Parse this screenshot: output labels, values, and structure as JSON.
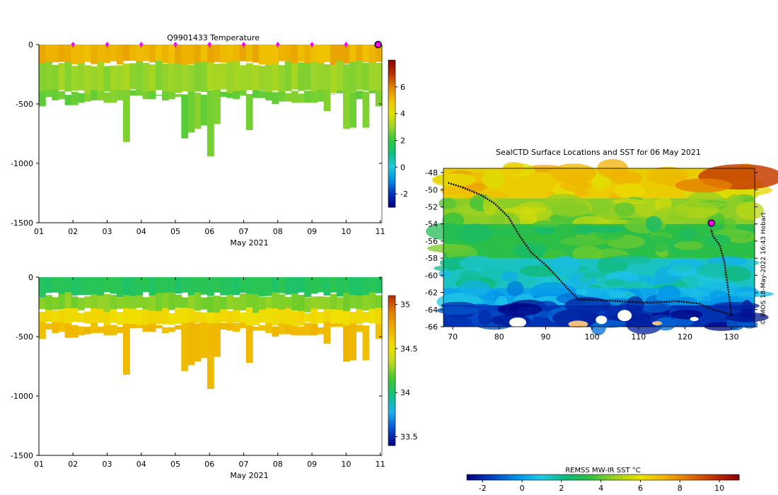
{
  "colors": {
    "temp_cmap": [
      "#00007f",
      "#0030c0",
      "#0090e0",
      "#20c8e0",
      "#10c080",
      "#30c840",
      "#9ad42a",
      "#e0e000",
      "#f0c000",
      "#e08000",
      "#b83000",
      "#8b0000"
    ],
    "sal_cmap": [
      "#00007f",
      "#0050d0",
      "#20b0f0",
      "#10c080",
      "#40c830",
      "#c0d820",
      "#f0e000",
      "#f0b000",
      "#e08000",
      "#b83000"
    ],
    "sst_cmap": [
      "#00007f",
      "#0040c0",
      "#0090e8",
      "#20c8e8",
      "#10b878",
      "#30c040",
      "#a0d020",
      "#e8e000",
      "#f0b000",
      "#e07000",
      "#c03000",
      "#8b0000"
    ],
    "marker": "#ff00ff",
    "track": "#000000"
  },
  "chart_data": [
    {
      "type": "heatmap",
      "title": "Q9901433  Temperature",
      "xlabel": "May 2021",
      "ylabel": "",
      "x_ticks": [
        "01",
        "02",
        "03",
        "04",
        "05",
        "06",
        "07",
        "08",
        "09",
        "10",
        "11"
      ],
      "x_range": [
        1,
        11.05
      ],
      "y_ticks": [
        "0",
        "-500",
        "-1000",
        "-1500"
      ],
      "y_range": [
        -1500,
        0
      ],
      "colorbar_ticks": [
        "-2",
        "0",
        "2",
        "4",
        "6"
      ],
      "colorbar_range": [
        -3,
        8
      ],
      "layers": [
        {
          "from": 0,
          "to": -160,
          "value": 5.2
        },
        {
          "from": -160,
          "to": -400,
          "value": 3.0
        },
        {
          "from": -400,
          "to": "bottom",
          "value": 2.6
        }
      ],
      "profile_bottoms": [
        -520,
        -440,
        -470,
        -460,
        -510,
        -510,
        -490,
        -480,
        -470,
        -470,
        -490,
        -490,
        -470,
        -820,
        -430,
        -430,
        -460,
        -460,
        -430,
        -470,
        -460,
        -440,
        -790,
        -740,
        -710,
        -680,
        -940,
        -670,
        -440,
        -450,
        -460,
        -430,
        -720,
        -450,
        -450,
        -470,
        -500,
        -480,
        -480,
        -490,
        -490,
        -490,
        -490,
        -480,
        -560,
        -420,
        -410,
        -710,
        -700,
        -460,
        -700,
        -410,
        -520
      ],
      "markers_x": [
        2,
        3,
        4,
        5,
        6,
        7,
        8,
        9,
        10,
        11
      ]
    },
    {
      "type": "heatmap",
      "title": "",
      "xlabel": "May 2021",
      "ylabel": "",
      "x_ticks": [
        "01",
        "02",
        "03",
        "04",
        "05",
        "06",
        "07",
        "08",
        "09",
        "10",
        "11"
      ],
      "x_range": [
        1,
        11.05
      ],
      "y_ticks": [
        "0",
        "-500",
        "-1000",
        "-1500"
      ],
      "y_range": [
        -1500,
        0
      ],
      "colorbar_ticks": [
        "33.5",
        "34",
        "34.5",
        "35"
      ],
      "colorbar_range": [
        33.4,
        35.1
      ],
      "layers": [
        {
          "from": 0,
          "to": -150,
          "value": 34.05
        },
        {
          "from": -150,
          "to": -280,
          "value": 34.25
        },
        {
          "from": -280,
          "to": -400,
          "value": 34.55
        },
        {
          "from": -400,
          "to": "bottom",
          "value": 34.68
        }
      ],
      "profile_bottoms": [
        -520,
        -440,
        -470,
        -460,
        -510,
        -510,
        -490,
        -480,
        -470,
        -470,
        -490,
        -490,
        -470,
        -820,
        -430,
        -430,
        -460,
        -460,
        -430,
        -470,
        -460,
        -440,
        -790,
        -740,
        -710,
        -680,
        -940,
        -670,
        -440,
        -450,
        -460,
        -430,
        -720,
        -450,
        -450,
        -470,
        -500,
        -480,
        -480,
        -490,
        -490,
        -490,
        -490,
        -480,
        -560,
        -420,
        -410,
        -710,
        -700,
        -460,
        -700,
        -410,
        -520
      ]
    },
    {
      "type": "heatmap",
      "title": "SealCTD Surface Locations and SST for 06 May 2021",
      "xlabel": "",
      "ylabel": "",
      "x_ticks": [
        "70",
        "80",
        "90",
        "100",
        "110",
        "120",
        "130"
      ],
      "x_range": [
        68,
        135
      ],
      "y_ticks": [
        "-48",
        "-50",
        "-52",
        "-54",
        "-56",
        "-58",
        "-60",
        "-62",
        "-64",
        "-66"
      ],
      "y_range": [
        -66,
        -47.5
      ],
      "side_label": "© IMOS 18-May-2022 16:43 Hobart",
      "colorbar_title": "REMSS MW-IR SST °C",
      "colorbar_ticks": [
        "-2",
        "0",
        "2",
        "4",
        "6",
        "8",
        "10"
      ],
      "colorbar_range": [
        -2.8,
        11
      ],
      "sst_zones": [
        {
          "lat_top": -47.5,
          "lat_bot": -51,
          "value": 6.5
        },
        {
          "lat_top": -51,
          "lat_bot": -54,
          "value": 4.5
        },
        {
          "lat_top": -54,
          "lat_bot": -58,
          "value": 3.3
        },
        {
          "lat_top": -58,
          "lat_bot": -61.5,
          "value": 1.4
        },
        {
          "lat_top": -61.5,
          "lat_bot": -63.5,
          "value": 0.2
        },
        {
          "lat_top": -63.5,
          "lat_bot": -66,
          "value": -1.8
        }
      ],
      "track": [
        [
          69,
          -49.2
        ],
        [
          72,
          -49.7
        ],
        [
          76,
          -50.6
        ],
        [
          79,
          -51.6
        ],
        [
          82,
          -53.2
        ],
        [
          84.5,
          -55.5
        ],
        [
          87,
          -57.4
        ],
        [
          90,
          -58.8
        ],
        [
          92.5,
          -60.2
        ],
        [
          95,
          -61.7
        ],
        [
          97,
          -62.8
        ],
        [
          102,
          -62.9
        ],
        [
          108,
          -63.1
        ],
        [
          113,
          -63.2
        ],
        [
          118,
          -63.0
        ],
        [
          123,
          -63.3
        ],
        [
          126,
          -64.0
        ],
        [
          130,
          -64.6
        ],
        [
          129.5,
          -62.5
        ],
        [
          128.5,
          -58.5
        ],
        [
          127.5,
          -56.5
        ],
        [
          126,
          -55.4
        ],
        [
          125.6,
          -54.6
        ]
      ],
      "latest_position": [
        125.7,
        -53.9
      ]
    }
  ]
}
